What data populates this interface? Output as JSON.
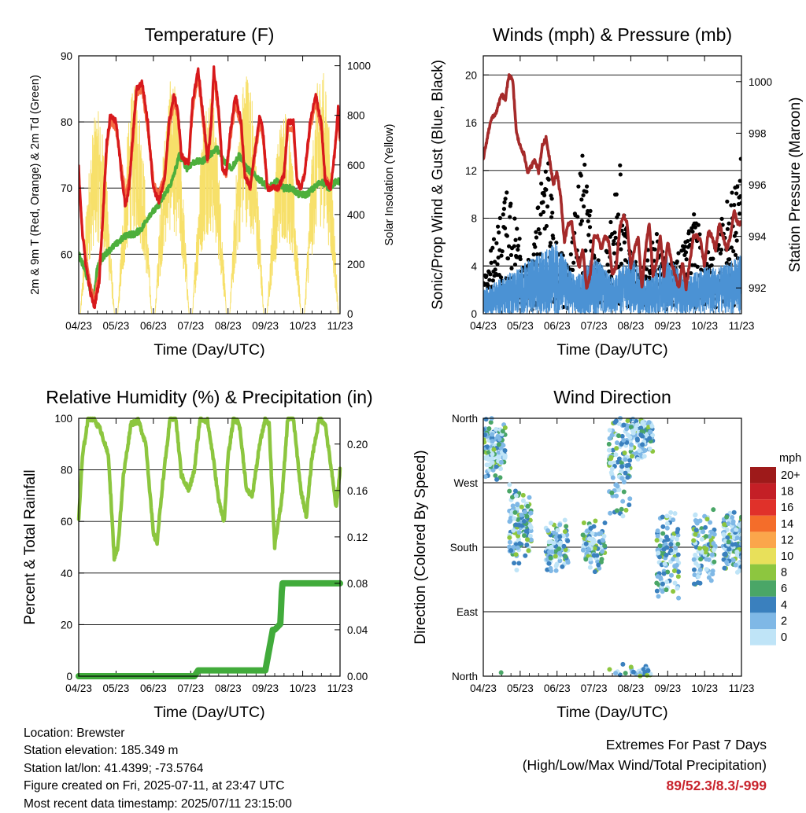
{
  "chart_data": [
    {
      "type": "line",
      "title": "Temperature (F)",
      "xlabel": "Time (Day/UTC)",
      "ylabel": "2m & 9m T (Red, Orange) & 2m Td (Green)",
      "y2label": "Solar Insolation (Yellow)",
      "x_ticks": [
        "04/23",
        "05/23",
        "06/23",
        "07/23",
        "08/23",
        "09/23",
        "10/23",
        "11/23"
      ],
      "ylim": [
        51,
        90
      ],
      "y_ticks": [
        60,
        70,
        80,
        90
      ],
      "y2lim": [
        0,
        1040
      ],
      "y2_ticks": [
        0,
        200,
        400,
        600,
        800,
        1000
      ],
      "grid": "horizontal at major ticks",
      "series": [
        {
          "name": "2m T",
          "color": "#d7191c",
          "x": [
            0,
            0.1,
            0.2,
            0.32,
            0.42,
            0.55,
            0.65,
            0.75,
            0.85,
            1.0,
            1.15,
            1.25,
            1.35,
            1.45,
            1.55,
            1.7,
            1.85,
            2.0,
            2.15,
            2.3,
            2.42,
            2.55,
            2.65,
            2.75,
            2.85,
            2.95,
            3.05,
            3.2,
            3.35,
            3.45,
            3.55,
            3.62,
            3.75,
            3.85,
            3.95,
            4.05,
            4.2,
            4.35,
            4.45,
            4.6,
            4.75,
            4.85,
            4.95,
            5.05,
            5.2,
            5.35,
            5.5,
            5.6,
            5.75,
            5.85,
            5.95,
            6.05,
            6.2,
            6.35,
            6.5,
            6.6,
            6.75,
            6.85,
            6.95,
            7.0
          ],
          "values": [
            73,
            63,
            58,
            54,
            52,
            56,
            66,
            77,
            81,
            80,
            72,
            67,
            70,
            78,
            85,
            86,
            80,
            70,
            68,
            71,
            80,
            84,
            82,
            75,
            74,
            74,
            83,
            88,
            80,
            74,
            80,
            88,
            82,
            73,
            72,
            78,
            84,
            80,
            72,
            70,
            77,
            81,
            78,
            70,
            70,
            70,
            72,
            80,
            80,
            71,
            70,
            72,
            80,
            84,
            80,
            71,
            70,
            75,
            82,
            78
          ]
        },
        {
          "name": "9m T",
          "color": "#f46d43",
          "x": [
            0,
            0.1,
            0.2,
            0.32,
            0.42,
            0.55,
            0.65,
            0.75,
            0.85,
            1.0,
            1.15,
            1.25,
            1.35,
            1.45,
            1.55,
            1.7,
            1.85,
            2.0,
            2.15,
            2.3,
            2.42,
            2.55,
            2.65,
            2.75,
            2.85,
            2.95,
            3.05,
            3.2,
            3.35,
            3.45,
            3.55,
            3.62,
            3.75,
            3.85,
            3.95,
            4.05,
            4.2,
            4.35,
            4.45,
            4.6,
            4.75,
            4.85,
            4.95,
            5.05,
            5.2,
            5.35,
            5.5,
            5.6,
            5.75,
            5.85,
            5.95,
            6.05,
            6.2,
            6.35,
            6.5,
            6.6,
            6.75,
            6.85,
            6.95,
            7.0
          ],
          "values": [
            72,
            63,
            59,
            55,
            53,
            57,
            66,
            76,
            80,
            79,
            73,
            69,
            71,
            77,
            84,
            85,
            79,
            71,
            69,
            72,
            79,
            83,
            81,
            75,
            74,
            74,
            82,
            87,
            79,
            74,
            79,
            87,
            81,
            73,
            72,
            77,
            83,
            79,
            72,
            70,
            76,
            80,
            77,
            70,
            70,
            70,
            72,
            79,
            79,
            71,
            70,
            72,
            79,
            83,
            79,
            72,
            70,
            75,
            81,
            77
          ]
        },
        {
          "name": "2m Td",
          "color": "#4daf3c",
          "x": [
            0,
            0.2,
            0.4,
            0.5,
            0.7,
            0.9,
            1.1,
            1.3,
            1.5,
            1.7,
            1.9,
            2.1,
            2.3,
            2.5,
            2.7,
            2.9,
            3.1,
            3.3,
            3.5,
            3.7,
            3.9,
            4.1,
            4.3,
            4.5,
            4.7,
            4.9,
            5.1,
            5.3,
            5.5,
            5.7,
            5.9,
            6.1,
            6.3,
            6.5,
            6.7,
            6.9,
            7.0
          ],
          "values": [
            60,
            57,
            53,
            58,
            60,
            61,
            62,
            63,
            63,
            64,
            66,
            67,
            69,
            71,
            75,
            73,
            74,
            74,
            75,
            76,
            74,
            73,
            75,
            73,
            72,
            71,
            70,
            71,
            70,
            70,
            69,
            69,
            70,
            71,
            70,
            71,
            71
          ]
        },
        {
          "name": "Solar Insolation",
          "color": "#f7e06a",
          "axis": "y2",
          "peak_days": [
            0.5,
            1.5,
            2.5,
            3.5,
            4.5,
            5.5,
            6.5
          ],
          "peak_values": [
            820,
            920,
            950,
            920,
            1000,
            840,
            1000
          ]
        }
      ]
    },
    {
      "type": "scatter",
      "title": "Winds (mph) & Pressure (mb)",
      "xlabel": "Time (Day/UTC)",
      "ylabel": "Sonic/Prop Wind & Gust (Blue, Black)",
      "y2label": "Station Pressure (Maroon)",
      "x_ticks": [
        "04/23",
        "05/23",
        "06/23",
        "07/23",
        "08/23",
        "09/23",
        "10/23",
        "11/23"
      ],
      "ylim": [
        0,
        21.6
      ],
      "y_ticks": [
        0,
        4,
        8,
        12,
        16,
        20
      ],
      "y2lim": [
        991,
        1001
      ],
      "y2_ticks": [
        992,
        994,
        996,
        998,
        1000
      ],
      "grid": "horizontal at major ticks",
      "series": [
        {
          "name": "Wind",
          "color": "#4b92d4",
          "envelope_x": [
            0,
            0.5,
            1,
            1.5,
            2,
            2.5,
            3,
            3.5,
            4,
            4.5,
            5,
            5.5,
            6,
            6.5,
            7
          ],
          "envelope_values": [
            2,
            3,
            4,
            5,
            6,
            3,
            5,
            3,
            5,
            3,
            5,
            3,
            4,
            4,
            5
          ]
        },
        {
          "name": "Gust",
          "color": "#000000",
          "envelope_x": [
            0,
            0.3,
            0.7,
            1,
            1.3,
            1.7,
            2,
            2.3,
            2.7,
            3,
            3.3,
            3.7,
            4,
            4.3,
            4.7,
            5,
            5.3,
            5.7,
            6,
            6.3,
            6.7,
            7
          ],
          "envelope_values": [
            3,
            5,
            12,
            5,
            3,
            14,
            5,
            3,
            14,
            4,
            3,
            13,
            4,
            3,
            6,
            3,
            4,
            8,
            4,
            5,
            9,
            13
          ]
        },
        {
          "name": "Station Pressure",
          "color": "#a52a2a",
          "axis": "y2",
          "x": [
            0,
            0.2,
            0.35,
            0.5,
            0.6,
            0.7,
            0.8,
            0.9,
            1.0,
            1.1,
            1.2,
            1.3,
            1.4,
            1.5,
            1.6,
            1.7,
            1.8,
            1.9,
            2.0,
            2.1,
            2.2,
            2.3,
            2.4,
            2.5,
            2.6,
            2.7,
            2.8,
            2.9,
            3.0,
            3.1,
            3.2,
            3.3,
            3.4,
            3.5,
            3.6,
            3.7,
            3.8,
            3.9,
            4.0,
            4.1,
            4.2,
            4.3,
            4.4,
            4.5,
            4.6,
            4.7,
            4.8,
            4.9,
            5.0,
            5.1,
            5.2,
            5.3,
            5.4,
            5.5,
            5.6,
            5.7,
            5.8,
            5.9,
            6.0,
            6.1,
            6.2,
            6.3,
            6.4,
            6.5,
            6.6,
            6.7,
            6.8,
            6.9,
            7.0
          ],
          "values": [
            997,
            998.5,
            998.8,
            999.5,
            999.3,
            1000.3,
            1000,
            998,
            997.5,
            997.2,
            996.5,
            996.7,
            997,
            996.5,
            997.5,
            997.8,
            997,
            996,
            996.5,
            995.5,
            993.8,
            994.5,
            994.5,
            993.5,
            992.8,
            993.5,
            992,
            992.5,
            994,
            994,
            993.5,
            994,
            993.8,
            992.5,
            992.8,
            994.3,
            994.8,
            994.5,
            992.8,
            993.5,
            994,
            992,
            993.5,
            994.5,
            992.5,
            993,
            994,
            992.5,
            993.8,
            993,
            992.5,
            992,
            993,
            992,
            993,
            994,
            994,
            993.8,
            992.8,
            994.2,
            994,
            993.5,
            994.5,
            994,
            993.5,
            994,
            995,
            994.5,
            994.5
          ]
        }
      ]
    },
    {
      "type": "line",
      "title": "Relative Humidity (%) & Precipitation (in)",
      "xlabel": "Time (Day/UTC)",
      "ylabel": "Percent & Total Rainfall",
      "x_ticks": [
        "04/23",
        "05/23",
        "06/23",
        "07/23",
        "08/23",
        "09/23",
        "10/23",
        "11/23"
      ],
      "ylim": [
        0,
        100
      ],
      "y_ticks": [
        0,
        20,
        40,
        60,
        80,
        100
      ],
      "y2lim": [
        0,
        0.2222
      ],
      "y2_ticks": [
        0.0,
        0.04,
        0.08,
        0.12,
        0.16,
        0.2
      ],
      "grid": "horizontal at major ticks",
      "series": [
        {
          "name": "Relative Humidity",
          "color": "#8cc63f",
          "x": [
            0,
            0.1,
            0.25,
            0.4,
            0.6,
            0.8,
            0.95,
            1.05,
            1.2,
            1.4,
            1.6,
            1.8,
            2.0,
            2.1,
            2.25,
            2.45,
            2.6,
            2.75,
            2.95,
            3.1,
            3.25,
            3.45,
            3.6,
            3.75,
            3.9,
            4.0,
            4.15,
            4.3,
            4.5,
            4.65,
            4.85,
            5.0,
            5.1,
            5.25,
            5.45,
            5.6,
            5.75,
            5.95,
            6.1,
            6.25,
            6.45,
            6.6,
            6.75,
            6.9,
            7.0
          ],
          "values": [
            61,
            85,
            100,
            100,
            95,
            85,
            46,
            50,
            78,
            98,
            99,
            90,
            55,
            52,
            75,
            100,
            100,
            78,
            72,
            80,
            100,
            99,
            85,
            68,
            60,
            85,
            100,
            98,
            72,
            70,
            90,
            100,
            98,
            50,
            70,
            100,
            100,
            72,
            62,
            85,
            100,
            98,
            82,
            65,
            80
          ]
        },
        {
          "name": "Total Precipitation",
          "color": "#41ab3b",
          "axis": "y2",
          "x": [
            0,
            3.1,
            3.2,
            5.0,
            5.2,
            5.25,
            5.4,
            5.45,
            5.6,
            7.0
          ],
          "values": [
            0,
            0,
            0.005,
            0.005,
            0.04,
            0.04,
            0.045,
            0.08,
            0.08,
            0.08
          ]
        }
      ]
    },
    {
      "type": "scatter",
      "title": "Wind Direction",
      "xlabel": "Time (Day/UTC)",
      "ylabel": "Direction (Colored By Speed)",
      "x_ticks": [
        "04/23",
        "05/23",
        "06/23",
        "07/23",
        "08/23",
        "09/23",
        "10/23",
        "11/23"
      ],
      "y_ticks": [
        "North",
        "East",
        "South",
        "West",
        "North"
      ],
      "ylim": [
        0,
        360
      ],
      "grid": "horizontal at major ticks",
      "legend": {
        "title": "mph",
        "placement": "right",
        "labels": [
          "20+",
          "18",
          "16",
          "14",
          "12",
          "10",
          "8",
          "6",
          "4",
          "2",
          "0"
        ],
        "colors": [
          "#9e1a1a",
          "#c41f26",
          "#e0312a",
          "#f46d2a",
          "#fba64b",
          "#e8e05a",
          "#8dc63f",
          "#4aa667",
          "#3a80be",
          "#7fb8e6",
          "#bfe4f7"
        ]
      },
      "clusters": [
        {
          "day": 0.3,
          "direction": 320,
          "spread": 30
        },
        {
          "day": 1.0,
          "direction": 210,
          "spread": 40
        },
        {
          "day": 2.0,
          "direction": 180,
          "spread": 25
        },
        {
          "day": 3.0,
          "direction": 180,
          "spread": 25
        },
        {
          "day": 3.7,
          "direction": 300,
          "spread": 50
        },
        {
          "day": 4.3,
          "direction": 340,
          "spread": 25
        },
        {
          "day": 5.0,
          "direction": 170,
          "spread": 50
        },
        {
          "day": 6.0,
          "direction": 180,
          "spread": 40
        },
        {
          "day": 6.8,
          "direction": 185,
          "spread": 30
        }
      ]
    }
  ],
  "footer": {
    "location": "Location: Brewster",
    "elevation": "Station elevation: 185.349 m",
    "latlon": "Station lat/lon: 41.4399; -73.5764",
    "created": "Figure created on Fri, 2025-07-11, at 23:47 UTC",
    "recent": "Most recent data timestamp: 2025/07/11 23:15:00",
    "extremes_title": "Extremes For Past 7 Days",
    "extremes_subtitle": "(High/Low/Max Wind/Total Precipitation)",
    "extremes_values": "89/52.3/8.3/-999"
  }
}
